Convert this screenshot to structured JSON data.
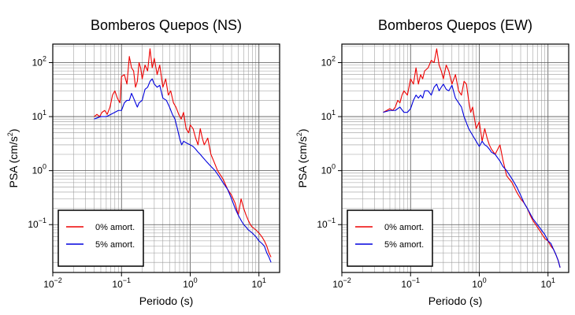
{
  "chart_data": [
    {
      "type": "line",
      "title": "Bomberos Quepos (NS)",
      "xlabel": "Periodo (s)",
      "ylabel_prefix": "PSA (cm/s",
      "ylabel_sup": "2",
      "ylabel_suffix": ")",
      "xscale": "log",
      "yscale": "log",
      "xlim": [
        0.01,
        20
      ],
      "ylim": [
        0.013,
        220
      ],
      "grid": true,
      "legend_placement": "bottom-left",
      "x_tick_labels": [
        {
          "base": "10",
          "exp": "−2",
          "value": 0.01
        },
        {
          "base": "10",
          "exp": "−1",
          "value": 0.1
        },
        {
          "base": "10",
          "exp": "0",
          "value": 1
        },
        {
          "base": "10",
          "exp": "1",
          "value": 10
        }
      ],
      "y_tick_labels": [
        {
          "base": "10",
          "exp": "−1",
          "value": 0.1
        },
        {
          "base": "10",
          "exp": "0",
          "value": 1
        },
        {
          "base": "10",
          "exp": "1",
          "value": 10
        },
        {
          "base": "10",
          "exp": "2",
          "value": 100
        }
      ],
      "series": [
        {
          "name": "0% amort.",
          "color": "#ee0000",
          "x": [
            0.04,
            0.044,
            0.048,
            0.052,
            0.057,
            0.062,
            0.068,
            0.074,
            0.08,
            0.087,
            0.095,
            0.1,
            0.11,
            0.12,
            0.13,
            0.14,
            0.15,
            0.16,
            0.17,
            0.18,
            0.19,
            0.2,
            0.22,
            0.24,
            0.26,
            0.28,
            0.3,
            0.33,
            0.36,
            0.4,
            0.44,
            0.48,
            0.52,
            0.57,
            0.62,
            0.68,
            0.74,
            0.8,
            0.87,
            0.95,
            1.0,
            1.1,
            1.2,
            1.3,
            1.4,
            1.5,
            1.6,
            1.8,
            2.0,
            2.2,
            2.5,
            2.8,
            3.0,
            3.5,
            4.0,
            4.5,
            5.0,
            5.5,
            6.0,
            6.5,
            7.0,
            7.5,
            8.0,
            9.0,
            10.0,
            11.0,
            12.0,
            13.0,
            14.0,
            15.0
          ],
          "y": [
            10,
            11,
            10,
            12,
            13,
            11,
            15,
            25,
            30,
            22,
            18,
            55,
            60,
            40,
            130,
            80,
            70,
            35,
            45,
            100,
            80,
            50,
            90,
            70,
            180,
            80,
            120,
            60,
            90,
            35,
            50,
            25,
            30,
            18,
            15,
            11,
            9,
            12,
            6,
            5,
            7,
            6,
            4,
            3,
            6,
            4,
            3,
            4,
            2,
            1.5,
            1,
            0.8,
            0.7,
            0.45,
            0.35,
            0.25,
            0.15,
            0.3,
            0.2,
            0.15,
            0.12,
            0.1,
            0.09,
            0.08,
            0.07,
            0.06,
            0.05,
            0.04,
            0.03,
            0.025
          ]
        },
        {
          "name": "5% amort.",
          "color": "#0000dd",
          "x": [
            0.04,
            0.05,
            0.06,
            0.07,
            0.08,
            0.09,
            0.1,
            0.11,
            0.12,
            0.13,
            0.14,
            0.15,
            0.16,
            0.17,
            0.18,
            0.2,
            0.22,
            0.24,
            0.26,
            0.28,
            0.3,
            0.33,
            0.36,
            0.4,
            0.45,
            0.5,
            0.55,
            0.6,
            0.65,
            0.7,
            0.75,
            0.8,
            0.9,
            1.0,
            1.1,
            1.2,
            1.3,
            1.4,
            1.5,
            1.7,
            2.0,
            2.3,
            2.6,
            3.0,
            3.5,
            4.0,
            4.5,
            5.0,
            5.5,
            6.0,
            6.5,
            7.0,
            8.0,
            9.0,
            10.0,
            11.0,
            12.0,
            13.0,
            14.0,
            15.0
          ],
          "y": [
            9,
            10,
            10,
            11,
            12,
            13,
            13,
            18,
            20,
            20,
            27,
            22,
            18,
            15,
            18,
            20,
            32,
            35,
            45,
            50,
            40,
            35,
            38,
            22,
            20,
            15,
            11,
            9,
            6,
            4,
            3,
            3.5,
            3.2,
            3,
            2.8,
            2.5,
            2.2,
            2,
            1.8,
            1.5,
            1.2,
            1,
            0.8,
            0.6,
            0.45,
            0.3,
            0.2,
            0.15,
            0.12,
            0.1,
            0.09,
            0.08,
            0.07,
            0.06,
            0.05,
            0.045,
            0.04,
            0.03,
            0.025,
            0.02
          ]
        }
      ]
    },
    {
      "type": "line",
      "title": "Bomberos Quepos (EW)",
      "xlabel": "Periodo (s)",
      "ylabel_prefix": "PSA (cm/s",
      "ylabel_sup": "2",
      "ylabel_suffix": ")",
      "xscale": "log",
      "yscale": "log",
      "xlim": [
        0.01,
        20
      ],
      "ylim": [
        0.013,
        220
      ],
      "grid": true,
      "legend_placement": "bottom-left",
      "x_tick_labels": [
        {
          "base": "10",
          "exp": "−2",
          "value": 0.01
        },
        {
          "base": "10",
          "exp": "−1",
          "value": 0.1
        },
        {
          "base": "10",
          "exp": "0",
          "value": 1
        },
        {
          "base": "10",
          "exp": "1",
          "value": 10
        }
      ],
      "y_tick_labels": [
        {
          "base": "10",
          "exp": "−1",
          "value": 0.1
        },
        {
          "base": "10",
          "exp": "0",
          "value": 1
        },
        {
          "base": "10",
          "exp": "1",
          "value": 10
        },
        {
          "base": "10",
          "exp": "2",
          "value": 100
        }
      ],
      "series": [
        {
          "name": "0% amort.",
          "color": "#ee0000",
          "x": [
            0.04,
            0.045,
            0.05,
            0.055,
            0.06,
            0.065,
            0.07,
            0.075,
            0.08,
            0.09,
            0.1,
            0.11,
            0.12,
            0.13,
            0.14,
            0.15,
            0.16,
            0.18,
            0.2,
            0.22,
            0.24,
            0.26,
            0.28,
            0.3,
            0.33,
            0.36,
            0.4,
            0.45,
            0.5,
            0.55,
            0.6,
            0.65,
            0.7,
            0.75,
            0.8,
            0.9,
            1.0,
            1.1,
            1.2,
            1.3,
            1.4,
            1.5,
            1.7,
            2.0,
            2.2,
            2.5,
            3.0,
            3.5,
            4.0,
            4.5,
            5.0,
            5.5,
            6.0,
            7.0,
            8.0,
            9.0,
            10.0,
            11.0,
            12.0,
            13.0,
            14.0,
            15.0
          ],
          "y": [
            12,
            13,
            14,
            13,
            15,
            20,
            18,
            25,
            30,
            25,
            50,
            40,
            80,
            40,
            60,
            50,
            70,
            80,
            110,
            100,
            180,
            90,
            70,
            50,
            90,
            70,
            40,
            60,
            30,
            25,
            45,
            40,
            20,
            12,
            15,
            6,
            8,
            3.5,
            6,
            4,
            3,
            2.5,
            2,
            3,
            1.6,
            0.8,
            0.6,
            0.4,
            0.3,
            0.25,
            0.2,
            0.15,
            0.12,
            0.09,
            0.07,
            0.055,
            0.05,
            0.04,
            0.035,
            0.028,
            0.022,
            0.016
          ]
        },
        {
          "name": "5% amort.",
          "color": "#0000dd",
          "x": [
            0.04,
            0.05,
            0.06,
            0.07,
            0.08,
            0.09,
            0.1,
            0.11,
            0.12,
            0.13,
            0.14,
            0.15,
            0.16,
            0.18,
            0.2,
            0.22,
            0.24,
            0.26,
            0.28,
            0.3,
            0.33,
            0.36,
            0.4,
            0.45,
            0.5,
            0.55,
            0.6,
            0.7,
            0.8,
            0.9,
            1.0,
            1.1,
            1.2,
            1.3,
            1.4,
            1.5,
            1.7,
            2.0,
            2.2,
            2.5,
            3.0,
            3.5,
            4.0,
            4.5,
            5.0,
            6.0,
            7.0,
            8.0,
            9.0,
            10.0,
            11.0,
            12.0,
            13.0,
            14.0,
            15.0
          ],
          "y": [
            12,
            13,
            13,
            15,
            12,
            12,
            14,
            20,
            25,
            22,
            25,
            22,
            30,
            30,
            25,
            35,
            40,
            30,
            35,
            40,
            32,
            30,
            38,
            22,
            18,
            15,
            10,
            6,
            4.5,
            3.5,
            2.8,
            3.5,
            3,
            2.8,
            2.5,
            2.2,
            2,
            1.5,
            1.2,
            1,
            0.7,
            0.5,
            0.35,
            0.25,
            0.2,
            0.13,
            0.1,
            0.08,
            0.065,
            0.05,
            0.045,
            0.035,
            0.028,
            0.022,
            0.016
          ]
        }
      ]
    }
  ]
}
